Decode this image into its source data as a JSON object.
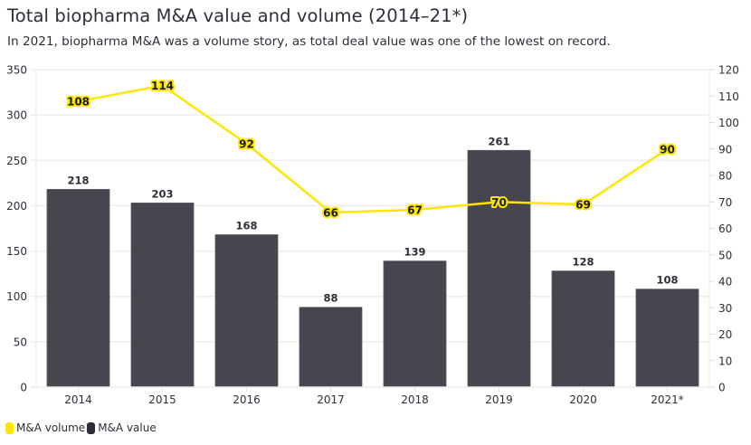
{
  "header": {
    "title": "Total biopharma M&A value and volume (2014–21*)",
    "subtitle": "In 2021, biopharma M&A was a volume story, as total deal value was one of the lowest on record."
  },
  "colors": {
    "value_bar": "#46464f",
    "volume_line": "#ffe600",
    "grid": "#eeeeee",
    "text": "#2e2e38"
  },
  "chart_data": {
    "type": "bar",
    "title": "Total biopharma M&A value and volume (2014–21*)",
    "categories": [
      "2014",
      "2015",
      "2016",
      "2017",
      "2018",
      "2019",
      "2020",
      "2021*"
    ],
    "series": [
      {
        "name": "M&A value",
        "type": "bar",
        "axis": "left",
        "values": [
          218,
          203,
          168,
          88,
          139,
          261,
          128,
          108
        ]
      },
      {
        "name": "M&A volume",
        "type": "line",
        "axis": "right",
        "values": [
          108,
          114,
          92,
          66,
          67,
          70,
          69,
          90
        ]
      }
    ],
    "left_axis": {
      "range": [
        0,
        350
      ],
      "ticks": [
        0,
        50,
        100,
        150,
        200,
        250,
        300,
        350
      ]
    },
    "right_axis": {
      "range": [
        0,
        120
      ],
      "ticks": [
        0,
        10,
        20,
        30,
        40,
        50,
        60,
        70,
        80,
        90,
        100,
        110,
        120
      ]
    },
    "xlabel": "",
    "ylabel": "",
    "grid": true,
    "legend_position": "bottom-left"
  },
  "legend": [
    {
      "label": "M&A volume",
      "color": "#ffe600"
    },
    {
      "label": "M&A value",
      "color": "#2e2e38"
    }
  ]
}
